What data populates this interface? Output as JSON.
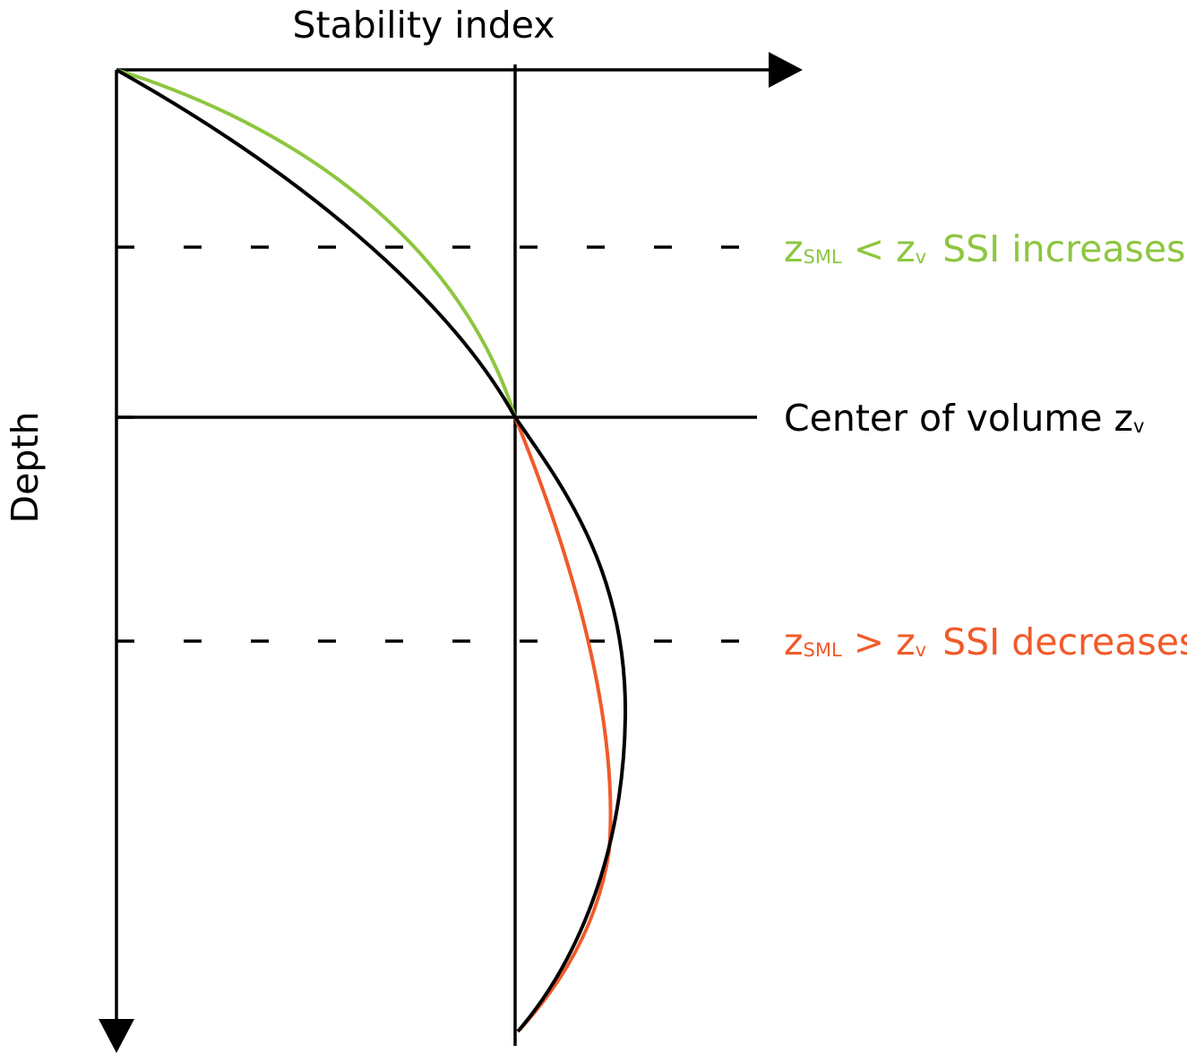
{
  "diagram": {
    "x_axis_label": "Stability index",
    "y_axis_label": "Depth",
    "center_line": {
      "text": "Center of volume z",
      "subscript": "v"
    },
    "upper_case": {
      "symbol": "z",
      "symbol_sub": "SML",
      "relation": " < z",
      "relation_sub": "v",
      "description": "SSI increases",
      "color": "#8dc63f"
    },
    "lower_case": {
      "symbol": "z",
      "symbol_sub": "SML",
      "relation": " > z",
      "relation_sub": "v",
      "description": "SSI decreases",
      "color": "#f15a29"
    },
    "curve_color": "#000000"
  }
}
